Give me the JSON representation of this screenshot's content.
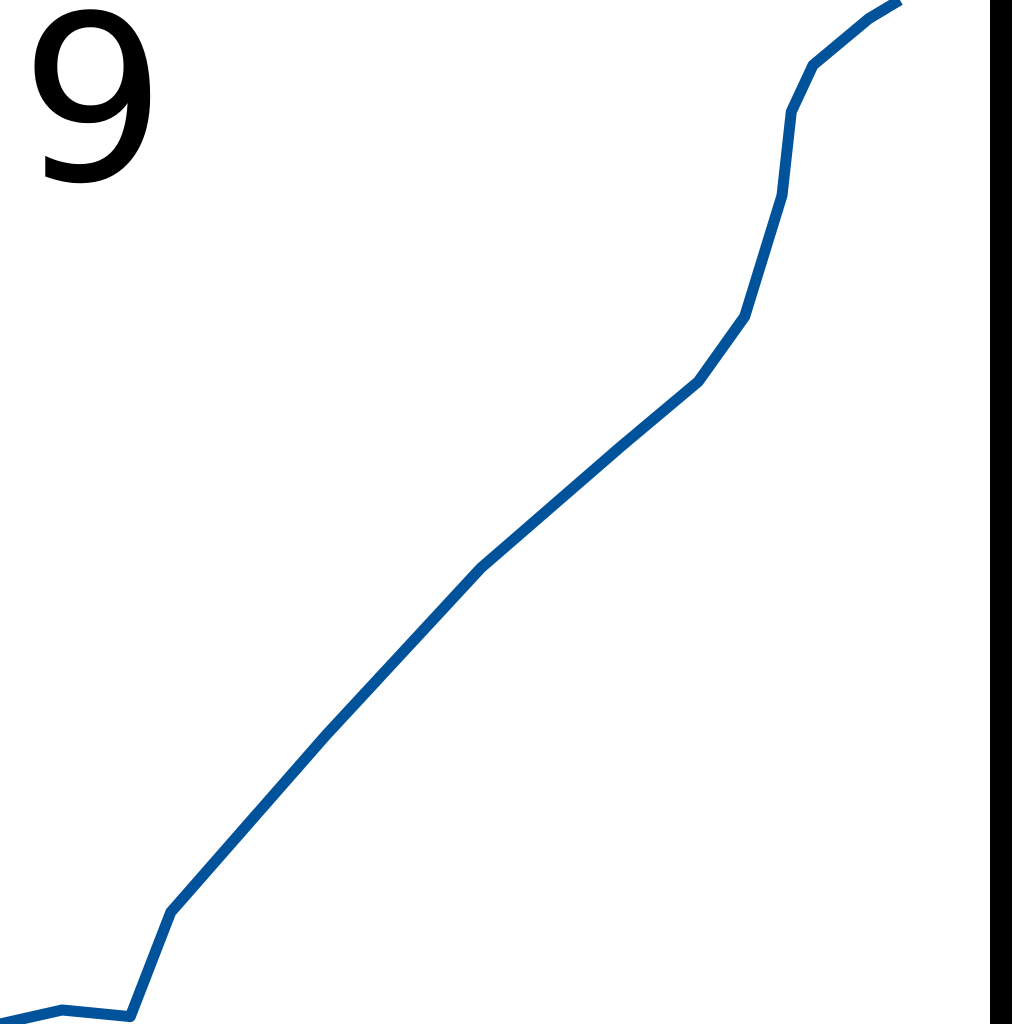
{
  "chart_data": {
    "type": "line",
    "title": "",
    "xlabel": "",
    "ylabel": "",
    "visible_tick_labels": [
      "9"
    ],
    "line_color": "#00529B",
    "axis_color": "#000000",
    "grid": false,
    "series": [
      {
        "values_description": "",
        "points": [
          [
            0.0,
            0.0
          ],
          [
            0.2,
            0.15
          ],
          [
            0.42,
            0.08
          ],
          [
            0.55,
            1.2
          ],
          [
            1.05,
            3.1
          ],
          [
            1.55,
            4.9
          ],
          [
            2.0,
            6.2
          ],
          [
            2.25,
            6.9
          ],
          [
            2.4,
            7.6
          ],
          [
            2.52,
            8.9
          ],
          [
            2.55,
            9.8
          ],
          [
            2.62,
            10.3
          ],
          [
            2.8,
            10.8
          ],
          [
            2.9,
            11.0
          ]
        ]
      }
    ],
    "xlim": [
      0,
      3.3
    ],
    "ylim": [
      0,
      11
    ]
  }
}
